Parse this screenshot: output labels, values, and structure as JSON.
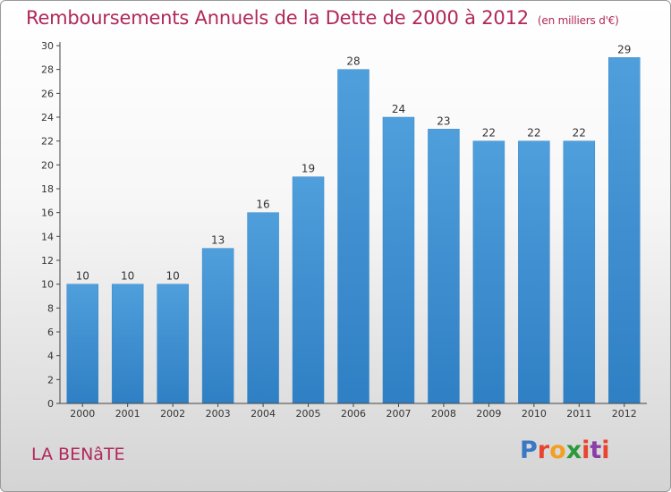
{
  "title": "Remboursements Annuels de la Dette de 2000 à 2012",
  "unit": "(en milliers d'€)",
  "commune": "LA BENâTE",
  "logo": {
    "letters": [
      "P",
      "r",
      "o",
      "x",
      "i",
      "t",
      "i"
    ],
    "colors": [
      "#3a78c4",
      "#e8442e",
      "#f2a024",
      "#2a9a3a",
      "#e8442e",
      "#8a3ea6",
      "#e8442e"
    ]
  },
  "colors": {
    "bar": "#4f9fdc",
    "bar_dark": "#2f7fc4",
    "title": "#b0285a"
  },
  "chart_data": {
    "type": "bar",
    "categories": [
      "2000",
      "2001",
      "2002",
      "2003",
      "2004",
      "2005",
      "2006",
      "2007",
      "2008",
      "2009",
      "2010",
      "2011",
      "2012"
    ],
    "values": [
      10,
      10,
      10,
      13,
      16,
      19,
      28,
      24,
      23,
      22,
      22,
      22,
      29
    ],
    "title": "Remboursements Annuels de la Dette de 2000 à 2012",
    "xlabel": "",
    "ylabel": "",
    "ylim": [
      0,
      30
    ],
    "yticks": [
      0,
      2,
      4,
      6,
      8,
      10,
      12,
      14,
      16,
      18,
      20,
      22,
      24,
      26,
      28,
      30
    ],
    "grid": false,
    "legend": "none"
  }
}
